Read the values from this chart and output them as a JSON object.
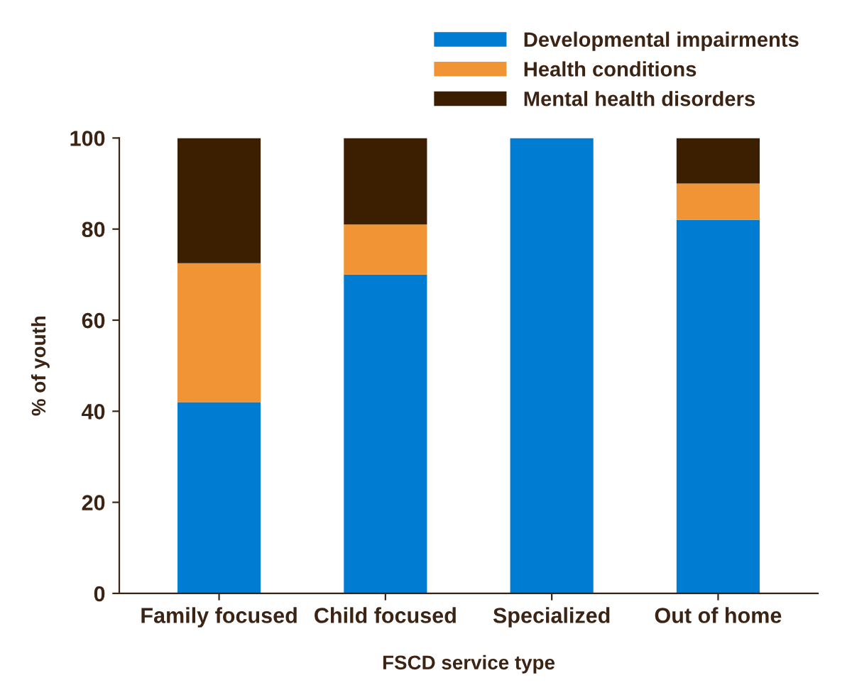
{
  "chart_data": {
    "type": "bar",
    "stacked": true,
    "xlabel": "FSCD service type",
    "ylabel": "% of youth",
    "categories": [
      "Family focused",
      "Child focused",
      "Specialized",
      "Out of home"
    ],
    "series": [
      {
        "name": "Developmental impairments",
        "color": "#007dd2",
        "values": [
          42,
          70,
          100,
          82
        ]
      },
      {
        "name": "Health conditions",
        "color": "#f09435",
        "values": [
          30.5,
          11,
          0,
          8
        ]
      },
      {
        "name": "Mental health disorders",
        "color": "#3c1e00",
        "values": [
          27.5,
          19,
          0,
          10
        ]
      }
    ],
    "ylim": [
      0,
      100
    ],
    "yticks": [
      0,
      20,
      40,
      60,
      80,
      100
    ],
    "grid": false,
    "legend": "top right"
  }
}
